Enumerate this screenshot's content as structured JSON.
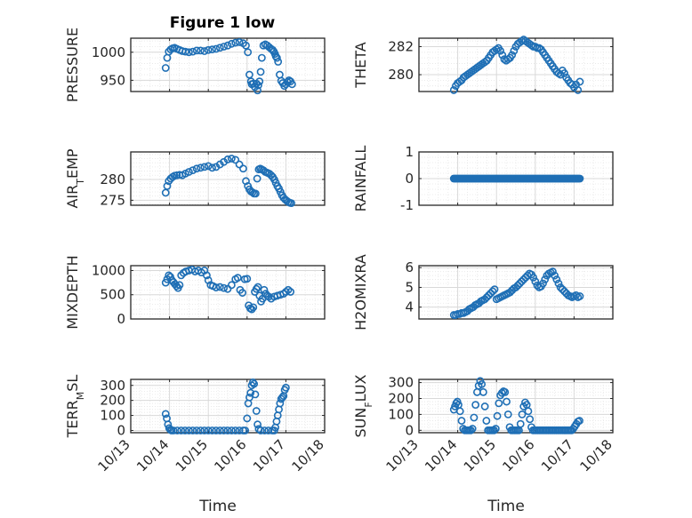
{
  "figure_title": "Figure 1 low",
  "x_tick_labels": [
    "10/13",
    "10/14",
    "10/15",
    "10/16",
    "10/17",
    "10/18"
  ],
  "colors": {
    "marker": "#1f6fb5",
    "axis": "#262626",
    "grid": "#d9d9d9",
    "background": "#ffffff"
  },
  "chart_data": [
    {
      "type": "scatter",
      "ylabel": "PRESSURE",
      "ylim": [
        930,
        1025
      ],
      "yticks": [
        "950",
        "1000"
      ],
      "ytick_values": [
        950,
        1000
      ],
      "xlabel": "",
      "xlim": [
        0,
        5
      ],
      "grid": true,
      "legend": false,
      "x": [
        0.9,
        0.94,
        0.98,
        1.03,
        1.08,
        1.13,
        1.19,
        1.26,
        1.33,
        1.41,
        1.5,
        1.6,
        1.7,
        1.8,
        1.9,
        2.0,
        2.1,
        2.2,
        2.3,
        2.4,
        2.5,
        2.6,
        2.7,
        2.8,
        2.9,
        2.97,
        3.02,
        3.06,
        3.1,
        3.12,
        3.16,
        3.2,
        3.24,
        3.27,
        3.29,
        3.32,
        3.35,
        3.38,
        3.42,
        3.47,
        3.52,
        3.57,
        3.62,
        3.66,
        3.69,
        3.72,
        3.74,
        3.77,
        3.8,
        3.84,
        3.88,
        3.92,
        3.96,
        4.0,
        4.04,
        4.08,
        4.12,
        4.16
      ],
      "y": [
        972,
        990,
        1001,
        1005,
        1007,
        1008,
        1006,
        1004,
        1002,
        1001,
        1000,
        1001,
        1003,
        1003,
        1002,
        1004,
        1005,
        1006,
        1008,
        1010,
        1012,
        1015,
        1017,
        1018,
        1016,
        1012,
        1000,
        960,
        948,
        943,
        944,
        938,
        944,
        932,
        941,
        948,
        965,
        990,
        1012,
        1014,
        1012,
        1009,
        1006,
        1004,
        1001,
        997,
        993,
        990,
        983,
        960,
        949,
        945,
        940,
        943,
        947,
        950,
        948,
        943
      ],
      "marker": "open-circle"
    },
    {
      "type": "scatter",
      "ylabel": "THETA",
      "ylim": [
        278.8,
        282.6
      ],
      "yticks": [
        "280",
        "282"
      ],
      "ytick_values": [
        280,
        282
      ],
      "xlabel": "",
      "xlim": [
        0,
        5
      ],
      "grid": true,
      "legend": false,
      "x": [
        0.9,
        0.95,
        1.0,
        1.05,
        1.1,
        1.15,
        1.2,
        1.25,
        1.3,
        1.35,
        1.4,
        1.45,
        1.5,
        1.55,
        1.6,
        1.65,
        1.7,
        1.75,
        1.8,
        1.85,
        1.9,
        1.95,
        2.0,
        2.05,
        2.1,
        2.15,
        2.2,
        2.25,
        2.3,
        2.35,
        2.4,
        2.45,
        2.5,
        2.55,
        2.6,
        2.65,
        2.7,
        2.75,
        2.8,
        2.85,
        2.9,
        2.95,
        3.0,
        3.05,
        3.1,
        3.15,
        3.2,
        3.25,
        3.3,
        3.35,
        3.4,
        3.45,
        3.5,
        3.55,
        3.6,
        3.65,
        3.7,
        3.75,
        3.8,
        3.85,
        3.9,
        3.95,
        4.0,
        4.05,
        4.1,
        4.15
      ],
      "y": [
        278.9,
        279.2,
        279.4,
        279.5,
        279.6,
        279.8,
        279.9,
        280.0,
        280.1,
        280.2,
        280.3,
        280.4,
        280.5,
        280.6,
        280.7,
        280.8,
        280.9,
        281.0,
        281.2,
        281.4,
        281.6,
        281.7,
        281.8,
        281.9,
        281.7,
        281.4,
        281.1,
        281.0,
        281.1,
        281.2,
        281.4,
        281.7,
        282.0,
        282.2,
        282.3,
        282.4,
        282.5,
        282.4,
        282.3,
        282.2,
        282.1,
        282.0,
        282.0,
        281.9,
        281.9,
        281.8,
        281.6,
        281.4,
        281.2,
        281.0,
        280.8,
        280.6,
        280.4,
        280.2,
        280.1,
        280.0,
        280.3,
        280.1,
        279.8,
        279.6,
        279.4,
        279.3,
        279.1,
        279.3,
        278.9,
        279.5
      ],
      "marker": "open-circle"
    },
    {
      "type": "scatter",
      "ylabel": "AIR_TEMP",
      "ylim": [
        273.8,
        286.6
      ],
      "yticks": [
        "275",
        "280"
      ],
      "ytick_values": [
        275,
        280
      ],
      "xlabel": "",
      "xlim": [
        0,
        5
      ],
      "grid": true,
      "legend": false,
      "x": [
        0.9,
        0.94,
        0.98,
        1.03,
        1.08,
        1.13,
        1.19,
        1.26,
        1.33,
        1.41,
        1.5,
        1.6,
        1.7,
        1.8,
        1.9,
        2.0,
        2.1,
        2.2,
        2.3,
        2.4,
        2.5,
        2.6,
        2.7,
        2.8,
        2.9,
        2.97,
        3.02,
        3.06,
        3.1,
        3.14,
        3.18,
        3.22,
        3.26,
        3.3,
        3.34,
        3.38,
        3.42,
        3.47,
        3.52,
        3.57,
        3.62,
        3.66,
        3.7,
        3.74,
        3.78,
        3.82,
        3.86,
        3.9,
        3.94,
        3.98,
        4.02,
        4.06,
        4.1,
        4.14
      ],
      "y": [
        276.8,
        278.4,
        279.6,
        280.2,
        280.6,
        280.9,
        281.0,
        281.1,
        281.0,
        281.4,
        281.8,
        282.2,
        282.6,
        282.8,
        283.0,
        283.2,
        282.8,
        283.0,
        283.6,
        284.2,
        284.8,
        285.0,
        284.7,
        283.6,
        282.6,
        279.6,
        278.4,
        277.6,
        277.1,
        276.9,
        276.6,
        276.6,
        280.2,
        282.4,
        282.6,
        282.4,
        282.2,
        281.8,
        281.6,
        281.4,
        281.0,
        280.6,
        280.0,
        279.2,
        278.4,
        277.8,
        277.0,
        276.2,
        275.6,
        275.2,
        274.9,
        274.6,
        274.4,
        274.3
      ],
      "marker": "open-circle"
    },
    {
      "type": "scatter",
      "ylabel": "RAINFALL",
      "ylim": [
        -1,
        1
      ],
      "yticks": [
        "-1",
        "0",
        "1"
      ],
      "ytick_values": [
        -1,
        0,
        1
      ],
      "xlabel": "",
      "xlim": [
        0,
        5
      ],
      "grid": true,
      "legend": false,
      "x_range": [
        0.9,
        4.15
      ],
      "n_points": 120,
      "constant_y": 0,
      "marker": "open-circle"
    },
    {
      "type": "scatter",
      "ylabel": "MIXDEPTH",
      "ylim": [
        0,
        1100
      ],
      "yticks": [
        "0",
        "500",
        "1000"
      ],
      "ytick_values": [
        0,
        500,
        1000
      ],
      "xlabel": "",
      "xlim": [
        0,
        5
      ],
      "grid": true,
      "legend": false,
      "x": [
        0.9,
        0.94,
        0.98,
        1.02,
        1.06,
        1.1,
        1.14,
        1.18,
        1.22,
        1.26,
        1.3,
        1.36,
        1.42,
        1.5,
        1.58,
        1.66,
        1.74,
        1.82,
        1.9,
        1.96,
        2.0,
        2.06,
        2.12,
        2.2,
        2.3,
        2.4,
        2.5,
        2.6,
        2.7,
        2.76,
        2.82,
        2.88,
        2.94,
        3.0,
        3.04,
        3.08,
        3.12,
        3.16,
        3.2,
        3.24,
        3.28,
        3.32,
        3.36,
        3.4,
        3.44,
        3.48,
        3.52,
        3.56,
        3.62,
        3.7,
        3.78,
        3.86,
        3.94,
        4.0,
        4.06,
        4.12
      ],
      "y": [
        750,
        820,
        900,
        870,
        800,
        760,
        720,
        680,
        640,
        700,
        900,
        950,
        980,
        1000,
        1020,
        980,
        1000,
        960,
        1000,
        900,
        800,
        700,
        680,
        650,
        660,
        640,
        620,
        700,
        820,
        850,
        600,
        540,
        820,
        830,
        280,
        220,
        200,
        240,
        560,
        620,
        660,
        480,
        360,
        420,
        600,
        520,
        480,
        460,
        420,
        460,
        480,
        500,
        520,
        560,
        600,
        560
      ],
      "marker": "open-circle"
    },
    {
      "type": "scatter",
      "ylabel": "H2OMIXRA",
      "ylim": [
        3.4,
        6.1
      ],
      "yticks": [
        "4",
        "5",
        "6"
      ],
      "ytick_values": [
        4,
        5,
        6
      ],
      "xlabel": "",
      "xlim": [
        0,
        5
      ],
      "grid": true,
      "legend": false,
      "x": [
        0.9,
        0.95,
        1.0,
        1.05,
        1.1,
        1.15,
        1.2,
        1.25,
        1.3,
        1.35,
        1.4,
        1.45,
        1.5,
        1.55,
        1.6,
        1.65,
        1.7,
        1.75,
        1.8,
        1.85,
        1.9,
        1.95,
        2.0,
        2.05,
        2.1,
        2.15,
        2.2,
        2.25,
        2.3,
        2.35,
        2.4,
        2.45,
        2.5,
        2.55,
        2.6,
        2.65,
        2.7,
        2.75,
        2.8,
        2.85,
        2.9,
        2.95,
        3.0,
        3.05,
        3.1,
        3.15,
        3.2,
        3.25,
        3.3,
        3.35,
        3.4,
        3.45,
        3.5,
        3.55,
        3.6,
        3.65,
        3.7,
        3.75,
        3.8,
        3.85,
        3.9,
        3.95,
        4.0,
        4.05,
        4.1,
        4.15
      ],
      "y": [
        3.6,
        3.6,
        3.65,
        3.65,
        3.7,
        3.7,
        3.75,
        3.8,
        3.9,
        3.95,
        4.0,
        4.1,
        4.15,
        4.2,
        4.3,
        4.35,
        4.4,
        4.5,
        4.6,
        4.7,
        4.8,
        4.9,
        4.4,
        4.45,
        4.5,
        4.55,
        4.6,
        4.65,
        4.7,
        4.75,
        4.85,
        4.95,
        5.0,
        5.1,
        5.2,
        5.3,
        5.4,
        5.5,
        5.6,
        5.7,
        5.65,
        5.5,
        5.3,
        5.1,
        5.0,
        5.05,
        5.2,
        5.4,
        5.6,
        5.7,
        5.75,
        5.8,
        5.6,
        5.4,
        5.2,
        5.0,
        4.9,
        4.8,
        4.7,
        4.6,
        4.55,
        4.5,
        4.55,
        4.6,
        4.5,
        4.55
      ],
      "marker": "open-circle"
    },
    {
      "type": "scatter",
      "ylabel": "TERR_MSL",
      "ylim": [
        -15,
        340
      ],
      "yticks": [
        "0",
        "100",
        "200",
        "300"
      ],
      "ytick_values": [
        0,
        100,
        200,
        300
      ],
      "xlabel": "Time",
      "xlim": [
        0,
        5
      ],
      "grid": true,
      "legend": false,
      "x": [
        0.9,
        0.93,
        0.96,
        0.99,
        1.02,
        1.05,
        1.1,
        1.2,
        1.3,
        1.4,
        1.5,
        1.6,
        1.7,
        1.8,
        1.9,
        2.0,
        2.1,
        2.2,
        2.3,
        2.4,
        2.5,
        2.6,
        2.7,
        2.8,
        2.9,
        2.95,
        3.0,
        3.03,
        3.06,
        3.09,
        3.12,
        3.15,
        3.18,
        3.21,
        3.24,
        3.27,
        3.3,
        3.35,
        3.45,
        3.55,
        3.65,
        3.7,
        3.73,
        3.76,
        3.79,
        3.82,
        3.85,
        3.88,
        3.91,
        3.94,
        3.97,
        4.0
      ],
      "y": [
        110,
        80,
        40,
        15,
        5,
        0,
        0,
        0,
        0,
        0,
        0,
        0,
        0,
        0,
        0,
        0,
        0,
        0,
        0,
        0,
        0,
        0,
        0,
        0,
        0,
        0,
        80,
        180,
        220,
        250,
        300,
        320,
        310,
        240,
        130,
        40,
        10,
        0,
        0,
        0,
        0,
        0,
        20,
        60,
        100,
        140,
        180,
        210,
        220,
        230,
        270,
        285
      ],
      "marker": "open-circle"
    },
    {
      "type": "scatter",
      "ylabel": "SUN_FLUX",
      "ylim": [
        -15,
        320
      ],
      "yticks": [
        "0",
        "100",
        "200",
        "300"
      ],
      "ytick_values": [
        0,
        100,
        200,
        300
      ],
      "xlabel": "Time",
      "xlim": [
        0,
        5
      ],
      "grid": true,
      "legend": false,
      "x": [
        0.9,
        0.93,
        0.96,
        0.99,
        1.02,
        1.06,
        1.1,
        1.14,
        1.18,
        1.22,
        1.26,
        1.3,
        1.34,
        1.38,
        1.42,
        1.46,
        1.5,
        1.54,
        1.58,
        1.62,
        1.66,
        1.7,
        1.74,
        1.78,
        1.82,
        1.86,
        1.9,
        1.94,
        1.98,
        2.02,
        2.06,
        2.1,
        2.14,
        2.18,
        2.22,
        2.26,
        2.3,
        2.34,
        2.38,
        2.42,
        2.46,
        2.5,
        2.54,
        2.58,
        2.62,
        2.66,
        2.7,
        2.74,
        2.78,
        2.82,
        2.86,
        2.9,
        2.94,
        2.98,
        3.02,
        3.06,
        3.1,
        3.14,
        3.18,
        3.22,
        3.26,
        3.3,
        3.34,
        3.38,
        3.42,
        3.46,
        3.5,
        3.54,
        3.58,
        3.62,
        3.66,
        3.7,
        3.74,
        3.78,
        3.82,
        3.86,
        3.9,
        3.94,
        3.98,
        4.02,
        4.06,
        4.1,
        4.14
      ],
      "y": [
        130,
        150,
        170,
        180,
        160,
        120,
        60,
        10,
        0,
        0,
        0,
        0,
        0,
        10,
        80,
        160,
        240,
        280,
        310,
        290,
        240,
        150,
        60,
        0,
        0,
        0,
        0,
        0,
        10,
        90,
        170,
        220,
        235,
        245,
        240,
        180,
        100,
        20,
        0,
        0,
        0,
        0,
        0,
        0,
        40,
        100,
        150,
        175,
        160,
        120,
        70,
        20,
        0,
        0,
        0,
        0,
        0,
        0,
        0,
        0,
        0,
        0,
        0,
        0,
        0,
        0,
        0,
        0,
        0,
        0,
        0,
        0,
        0,
        0,
        0,
        0,
        0,
        0,
        10,
        25,
        40,
        55,
        60
      ],
      "marker": "open-circle"
    }
  ]
}
